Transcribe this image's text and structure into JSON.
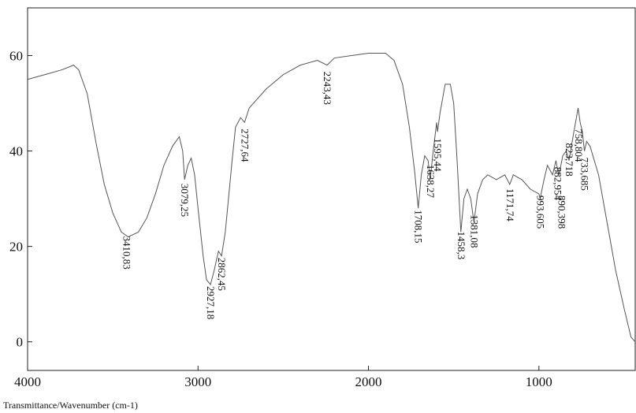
{
  "chart_data": {
    "type": "line",
    "xlabel": "Transmittance/Wavenumber (cm-1)",
    "xlim": [
      4000,
      435
    ],
    "ylim": [
      -6,
      70
    ],
    "xticks": [
      4000,
      3000,
      2000,
      1000
    ],
    "yticks": [
      0,
      20,
      40,
      60
    ],
    "color": "#555555",
    "x": [
      4000,
      3900,
      3800,
      3730,
      3700,
      3650,
      3600,
      3550,
      3500,
      3450,
      3410,
      3350,
      3300,
      3250,
      3200,
      3150,
      3110,
      3090,
      3079,
      3060,
      3040,
      3020,
      3000,
      2970,
      2950,
      2927,
      2905,
      2880,
      2862,
      2840,
      2800,
      2780,
      2750,
      2727,
      2700,
      2650,
      2600,
      2500,
      2400,
      2300,
      2243,
      2200,
      2100,
      2000,
      1900,
      1850,
      1800,
      1760,
      1730,
      1708,
      1690,
      1670,
      1650,
      1638,
      1620,
      1600,
      1595,
      1580,
      1550,
      1520,
      1500,
      1480,
      1458,
      1440,
      1420,
      1400,
      1381,
      1360,
      1330,
      1300,
      1250,
      1200,
      1171,
      1150,
      1100,
      1050,
      1000,
      993,
      970,
      950,
      920,
      900,
      890,
      882,
      860,
      840,
      823,
      800,
      770,
      758,
      745,
      733,
      720,
      700,
      650,
      600,
      550,
      500,
      460,
      435
    ],
    "values": [
      55,
      56,
      57,
      58,
      57,
      52,
      42,
      33,
      27,
      23,
      22,
      23,
      26,
      31,
      37,
      41,
      43,
      40,
      34,
      37,
      38.5,
      35,
      28,
      18,
      13,
      12,
      15,
      19,
      18,
      23,
      38,
      45,
      47,
      46,
      49,
      51,
      53,
      56,
      58,
      59,
      58,
      59.5,
      60,
      60.5,
      60.5,
      59,
      54,
      45,
      36,
      28,
      35,
      39,
      38,
      34,
      40,
      46,
      44,
      48,
      54,
      54,
      50,
      38,
      23,
      30,
      32,
      30,
      25,
      31,
      34,
      35,
      34,
      35,
      33,
      35,
      34,
      32,
      31,
      30,
      34,
      37,
      35,
      38,
      36,
      35,
      39,
      40,
      38,
      43,
      49,
      46,
      44,
      40,
      42,
      41,
      35,
      25,
      15,
      7,
      1,
      0
    ],
    "annotations": [
      {
        "text": "3410,83",
        "x": 3420,
        "y": 22.5
      },
      {
        "text": "3079,25",
        "x": 3079,
        "y": 33.5
      },
      {
        "text": "2927,18",
        "x": 2927,
        "y": 12
      },
      {
        "text": "2862,45",
        "x": 2862,
        "y": 18
      },
      {
        "text": "2727,64",
        "x": 2727,
        "y": 45
      },
      {
        "text": "2243,43",
        "x": 2243,
        "y": 57
      },
      {
        "text": "1708,15",
        "x": 1708,
        "y": 28
      },
      {
        "text": "1638,27",
        "x": 1638,
        "y": 37.5
      },
      {
        "text": "1595,44",
        "x": 1595,
        "y": 43
      },
      {
        "text": "1458,3",
        "x": 1458,
        "y": 23.5
      },
      {
        "text": "1381,08",
        "x": 1381,
        "y": 27
      },
      {
        "text": "1171,74",
        "x": 1171,
        "y": 32.5
      },
      {
        "text": "993,605",
        "x": 993,
        "y": 31
      },
      {
        "text": "882,954",
        "x": 890,
        "y": 37
      },
      {
        "text": "890,398",
        "x": 868,
        "y": 31
      },
      {
        "text": "823,718",
        "x": 823,
        "y": 42
      },
      {
        "text": "758,804",
        "x": 768,
        "y": 45
      },
      {
        "text": "733,685",
        "x": 733,
        "y": 39
      }
    ]
  }
}
